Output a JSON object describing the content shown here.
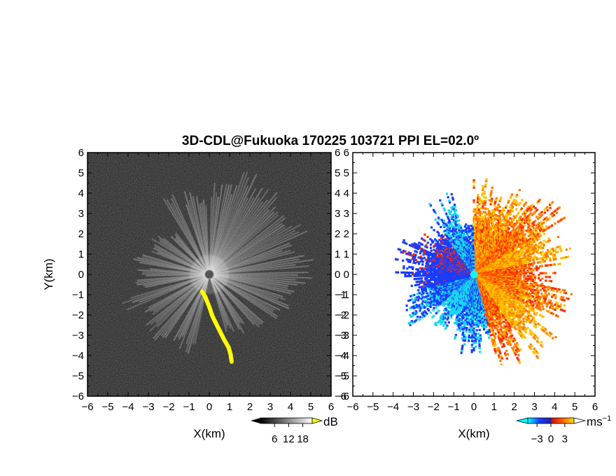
{
  "title": "3D-CDL@Fukuoka 170225 103721 PPI EL=02.0º",
  "colors": {
    "background_left": "#202020",
    "echo_gray": "#d8d8d8",
    "hard_target": "#ffff00",
    "neg_strong": "#1a3cff",
    "neg_weak": "#19d6f0",
    "pos_weak": "#ffc000",
    "pos_strong": "#ff2a00",
    "center_marker": "#00ffff"
  },
  "chart_data": [
    {
      "type": "heatmap",
      "name": "snr-ppi",
      "xlabel": "X(km)",
      "ylabel": "Y(km)",
      "xlim": [
        -6,
        6
      ],
      "ylim": [
        -6,
        6
      ],
      "xticks": [
        "−6",
        "−5",
        "−4",
        "−3",
        "−2",
        "−1",
        "0",
        "1",
        "2",
        "3",
        "4",
        "5",
        "6"
      ],
      "yticks": [
        "−6",
        "−5",
        "−4",
        "−3",
        "−2",
        "−1",
        "0",
        "1",
        "2",
        "3",
        "4",
        "5",
        "6"
      ],
      "colorbar": {
        "unit": "dB",
        "tick_labels": [
          "6",
          "12",
          "18"
        ],
        "ticks": [
          6,
          12,
          18
        ],
        "range": [
          0,
          22
        ]
      },
      "radial_streaks": [
        {
          "az_deg": 14,
          "len_km": 4.6
        },
        {
          "az_deg": 22,
          "len_km": 5.3
        },
        {
          "az_deg": 30,
          "len_km": 4.8
        },
        {
          "az_deg": 38,
          "len_km": 5.0
        },
        {
          "az_deg": 46,
          "len_km": 4.6
        },
        {
          "az_deg": 55,
          "len_km": 4.7
        },
        {
          "az_deg": 63,
          "len_km": 5.2
        },
        {
          "az_deg": 72,
          "len_km": 4.4
        },
        {
          "az_deg": 82,
          "len_km": 5.0
        },
        {
          "az_deg": 92,
          "len_km": 4.8
        },
        {
          "az_deg": 100,
          "len_km": 4.5
        },
        {
          "az_deg": 110,
          "len_km": 4.2
        },
        {
          "az_deg": 120,
          "len_km": 4.0
        },
        {
          "az_deg": 135,
          "len_km": 3.6
        },
        {
          "az_deg": 148,
          "len_km": 3.2
        },
        {
          "az_deg": 160,
          "len_km": 3.0
        },
        {
          "az_deg": 195,
          "len_km": 4.0
        },
        {
          "az_deg": 205,
          "len_km": 3.8
        },
        {
          "az_deg": 218,
          "len_km": 4.2
        },
        {
          "az_deg": 228,
          "len_km": 4.0
        },
        {
          "az_deg": 238,
          "len_km": 3.5
        },
        {
          "az_deg": 250,
          "len_km": 4.3
        },
        {
          "az_deg": 262,
          "len_km": 3.6
        },
        {
          "az_deg": 272,
          "len_km": 3.4
        },
        {
          "az_deg": 283,
          "len_km": 3.8
        },
        {
          "az_deg": 295,
          "len_km": 3.0
        },
        {
          "az_deg": 305,
          "len_km": 3.3
        },
        {
          "az_deg": 318,
          "len_km": 2.7
        },
        {
          "az_deg": 332,
          "len_km": 4.3
        },
        {
          "az_deg": 345,
          "len_km": 4.2
        },
        {
          "az_deg": 354,
          "len_km": 3.7
        },
        {
          "az_deg": 5,
          "len_km": 4.4
        }
      ],
      "hard_target_path": [
        [
          -0.35,
          -0.85
        ],
        [
          -0.2,
          -1.1
        ],
        [
          0.0,
          -1.6
        ],
        [
          0.15,
          -2.05
        ],
        [
          0.35,
          -2.45
        ],
        [
          0.55,
          -2.85
        ],
        [
          0.75,
          -3.25
        ],
        [
          0.95,
          -3.6
        ],
        [
          1.05,
          -3.95
        ],
        [
          1.1,
          -4.3
        ]
      ],
      "center_marker_km": [
        0,
        0
      ]
    },
    {
      "type": "heatmap",
      "name": "radial-velocity-ppi",
      "xlabel": "X(km)",
      "ylabel": "",
      "xlim": [
        -6,
        6
      ],
      "ylim": [
        -6,
        6
      ],
      "xticks": [
        "−6",
        "−5",
        "−4",
        "−3",
        "−2",
        "−1",
        "0",
        "1",
        "2",
        "3",
        "4",
        "5",
        "6"
      ],
      "yticks": [
        "−6",
        "−5",
        "−4",
        "−3",
        "−2",
        "−1",
        "0",
        "1",
        "2",
        "3",
        "4",
        "5",
        "6"
      ],
      "colorbar": {
        "unit": "ms",
        "unit_sup": "−1",
        "tick_labels": [
          "−3",
          "0",
          "3"
        ],
        "ticks": [
          -3,
          0,
          3
        ],
        "range": [
          -5,
          5
        ]
      },
      "sectors": [
        {
          "az_from": 0,
          "az_to": 40,
          "len_km": 4.2,
          "v": 2.5
        },
        {
          "az_from": 40,
          "az_to": 60,
          "len_km": 4.8,
          "v": 2.0
        },
        {
          "az_from": 60,
          "az_to": 80,
          "len_km": 4.6,
          "v": 3.0
        },
        {
          "az_from": 80,
          "az_to": 100,
          "len_km": 3.8,
          "v": 1.8
        },
        {
          "az_from": 100,
          "az_to": 120,
          "len_km": 4.5,
          "v": 2.2
        },
        {
          "az_from": 120,
          "az_to": 145,
          "len_km": 4.8,
          "v": 3.2
        },
        {
          "az_from": 145,
          "az_to": 165,
          "len_km": 4.4,
          "v": 2.0
        },
        {
          "az_from": 165,
          "az_to": 200,
          "len_km": 3.5,
          "v": -2.6
        },
        {
          "az_from": 200,
          "az_to": 230,
          "len_km": 2.8,
          "v": -3.4
        },
        {
          "az_from": 230,
          "az_to": 255,
          "len_km": 3.6,
          "v": -2.3
        },
        {
          "az_from": 255,
          "az_to": 275,
          "len_km": 3.4,
          "v": -1.4
        },
        {
          "az_from": 275,
          "az_to": 300,
          "len_km": 3.5,
          "v": -1.0
        },
        {
          "az_from": 300,
          "az_to": 325,
          "len_km": 3.0,
          "v": -0.8
        },
        {
          "az_from": 325,
          "az_to": 345,
          "len_km": 3.8,
          "v": -2.8
        },
        {
          "az_from": 345,
          "az_to": 360,
          "len_km": 2.6,
          "v": -2.2
        }
      ],
      "center_marker_km": [
        0,
        0
      ]
    }
  ]
}
